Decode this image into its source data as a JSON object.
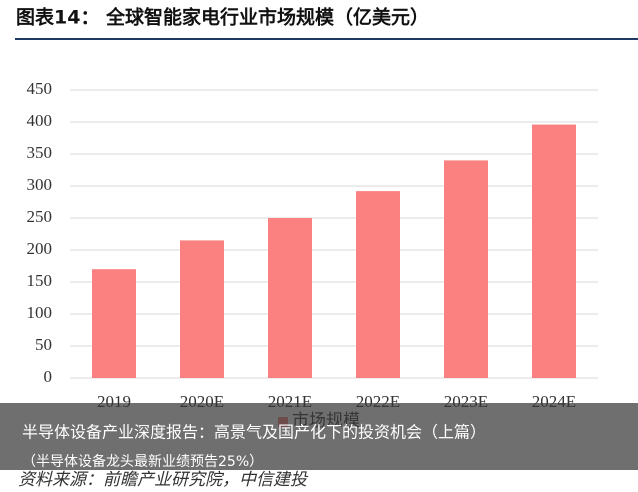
{
  "chart_data": {
    "type": "bar",
    "title": "图表14：  全球智能家电行业市场规模（亿美元）",
    "categories": [
      "2019",
      "2020E",
      "2021E",
      "2022E",
      "2023E",
      "2024E"
    ],
    "series": [
      {
        "name": "市场规模",
        "color": "#fb8080",
        "values": [
          170,
          215,
          250,
          292,
          340,
          396
        ]
      }
    ],
    "ylim": [
      0,
      450
    ],
    "yticks": [
      0,
      50,
      100,
      150,
      200,
      250,
      300,
      350,
      400,
      450
    ],
    "grid": true,
    "legend": "bottom",
    "source": "资料来源：前瞻产业研究院，中信建投"
  },
  "overlay": {
    "line1": "半导体设备产业深度报告：高景气及国产化下的投资机会（上篇）",
    "line2": "（半导体设备龙头最新业绩预告25%）"
  }
}
